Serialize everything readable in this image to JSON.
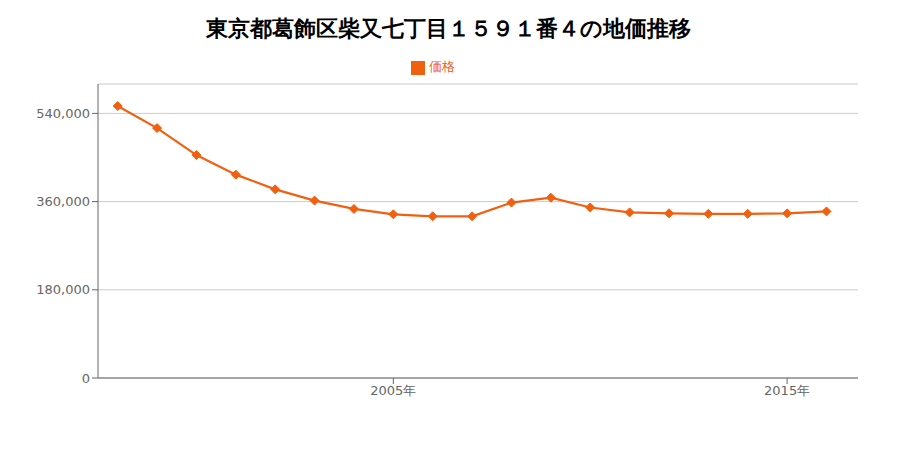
{
  "chart_data": {
    "type": "line",
    "title": "東京都葛飾区柴又七丁目１５９１番４の地価推移",
    "x": [
      1998,
      1999,
      2000,
      2001,
      2002,
      2003,
      2004,
      2005,
      2006,
      2007,
      2008,
      2009,
      2010,
      2011,
      2012,
      2013,
      2014,
      2015,
      2016
    ],
    "series": [
      {
        "name": "価格",
        "color": "#f06010",
        "marker": "diamond",
        "line_style": "solid",
        "values": [
          555000,
          510000,
          455000,
          415000,
          385000,
          362000,
          345000,
          334000,
          330000,
          330000,
          358000,
          368000,
          348000,
          338000,
          336000,
          335000,
          335000,
          336000,
          340000
        ]
      }
    ],
    "xlim": [
      1997.5,
      2016.8
    ],
    "xticks": [
      {
        "value": 2005,
        "label": "2005年"
      },
      {
        "value": 2015,
        "label": "2015年"
      }
    ],
    "ylim": [
      0,
      600000
    ],
    "yticks": [
      0,
      {
        "value": 180000,
        "label": "180,000"
      },
      {
        "value": 360000,
        "label": "360,000"
      },
      {
        "value": 540000,
        "label": "540,000"
      }
    ],
    "grid": "y",
    "legend": "top"
  }
}
